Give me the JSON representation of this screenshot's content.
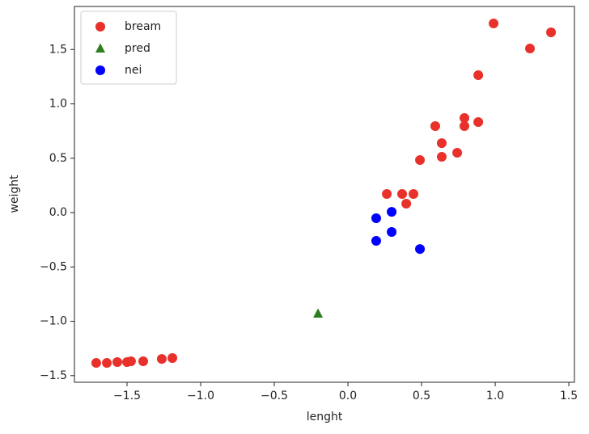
{
  "chart_data": {
    "type": "scatter",
    "x_label": "lenght",
    "y_label": "weight",
    "xlim": [
      -1.857,
      1.538
    ],
    "ylim": [
      -1.561,
      1.896
    ],
    "xticks": [
      {
        "value": -1.5,
        "label": "−1.5"
      },
      {
        "value": -1.0,
        "label": "−1.0"
      },
      {
        "value": -0.5,
        "label": "−0.5"
      },
      {
        "value": 0,
        "label": "0.0"
      },
      0.5,
      {
        "value": 1.0,
        "label": "1.0"
      },
      1.5
    ],
    "yticks": [
      {
        "value": -1.5,
        "label": "−1.5"
      },
      {
        "value": -1.0,
        "label": "−1.0"
      },
      {
        "value": -0.5,
        "label": "−0.5"
      },
      {
        "value": 0,
        "label": "0.0"
      },
      0.5,
      {
        "value": 1.0,
        "label": "1.0"
      },
      1.5
    ],
    "legend": "upper left",
    "series": [
      {
        "name": "bream",
        "color": "#e8312a",
        "marker": "circle",
        "x": [
          -1.709,
          -1.637,
          -1.566,
          -1.5,
          -1.473,
          -1.39,
          -1.264,
          -1.192,
          0.264,
          0.368,
          0.445,
          0.396,
          0.489,
          0.637,
          0.637,
          0.742,
          0.593,
          0.791,
          0.791,
          0.885,
          0.885,
          0.989,
          1.236,
          1.379
        ],
        "y": [
          -1.383,
          -1.383,
          -1.375,
          -1.375,
          -1.368,
          -1.368,
          -1.346,
          -1.338,
          0.171,
          0.171,
          0.171,
          0.082,
          0.483,
          0.513,
          0.639,
          0.55,
          0.796,
          0.87,
          0.796,
          0.833,
          1.264,
          1.74,
          1.509,
          1.658
        ]
      },
      {
        "name": "pred",
        "color": "#2e7d1e",
        "marker": "triangle",
        "x": [
          -0.203
        ],
        "y": [
          -0.929
        ]
      },
      {
        "name": "nei",
        "color": "#0000ff",
        "marker": "circle",
        "x": [
          0.192,
          0.192,
          0.297,
          0.297,
          0.489
        ],
        "y": [
          -0.052,
          -0.26,
          0.007,
          -0.178,
          -0.335
        ]
      }
    ]
  }
}
